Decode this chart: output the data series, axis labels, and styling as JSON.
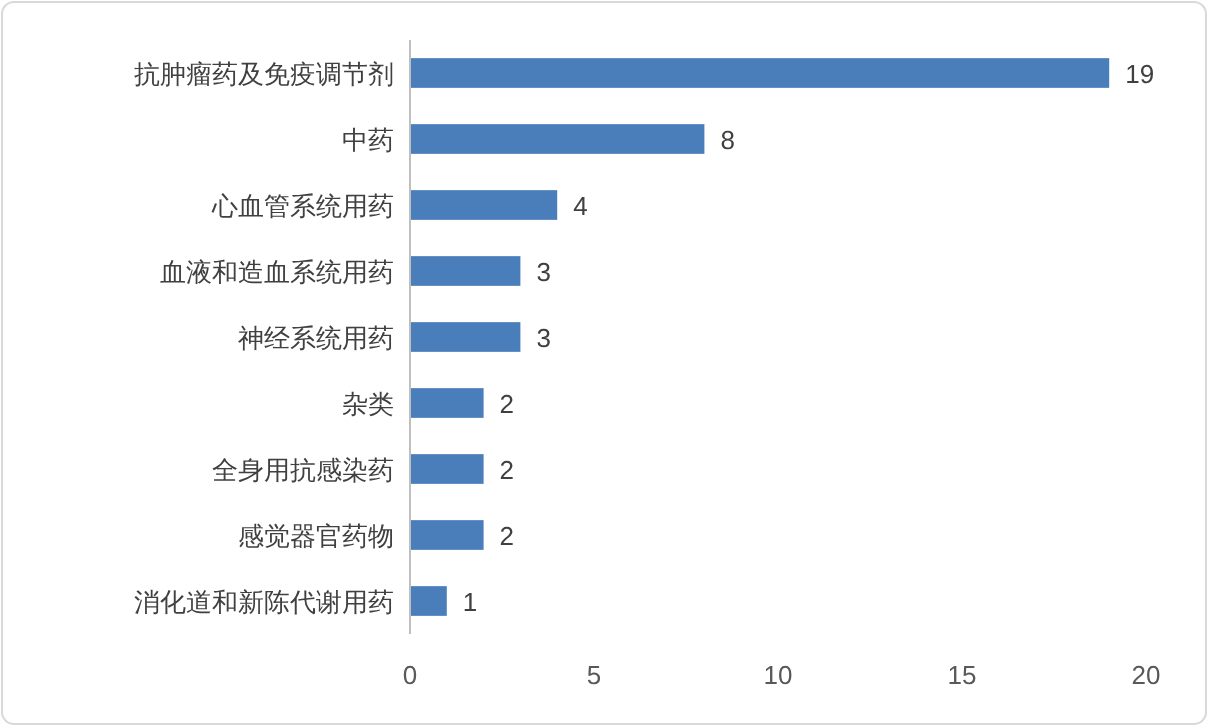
{
  "chart_data": {
    "type": "bar",
    "orientation": "horizontal",
    "categories": [
      "抗肿瘤药及免疫调节剂",
      "中药",
      "心血管系统用药",
      "血液和造血系统用药",
      "神经系统用药",
      "杂类",
      "全身用抗感染药",
      "感觉器官药物",
      "消化道和新陈代谢用药"
    ],
    "values": [
      19,
      8,
      4,
      3,
      3,
      2,
      2,
      2,
      1
    ],
    "color": "#4a7ebb",
    "xlim": [
      0,
      20
    ],
    "xticks": [
      0,
      5,
      10,
      15,
      20
    ],
    "data_labels": true
  }
}
